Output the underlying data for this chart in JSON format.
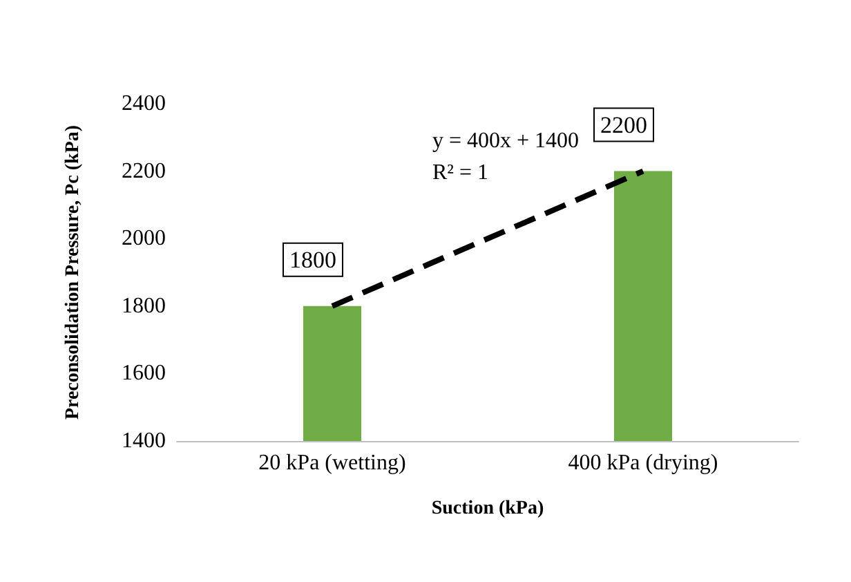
{
  "chart_data": {
    "type": "bar",
    "xlabel": "Suction (kPa)",
    "ylabel": "Preconsolidation Pressure, Pc (kPa)",
    "categories": [
      "20 kPa (wetting)",
      "400 kPa (drying)"
    ],
    "series": [
      {
        "color": "#70ad47",
        "values": [
          1800,
          2200
        ],
        "value_labels": [
          "1800",
          "2200"
        ]
      },
      {
        "type": "line",
        "color": "#000000",
        "line_style": "dashed",
        "x": [
          "20 kPa (wetting)",
          "400 kPa (drying)"
        ],
        "values": [
          1800,
          2200
        ]
      }
    ],
    "ylim": [
      1400,
      2400
    ],
    "yticks": [
      1400,
      1600,
      1800,
      2000,
      2200,
      2400
    ],
    "grid": false,
    "annotations": [
      "y = 400x + 1400",
      "R² = 1"
    ]
  }
}
